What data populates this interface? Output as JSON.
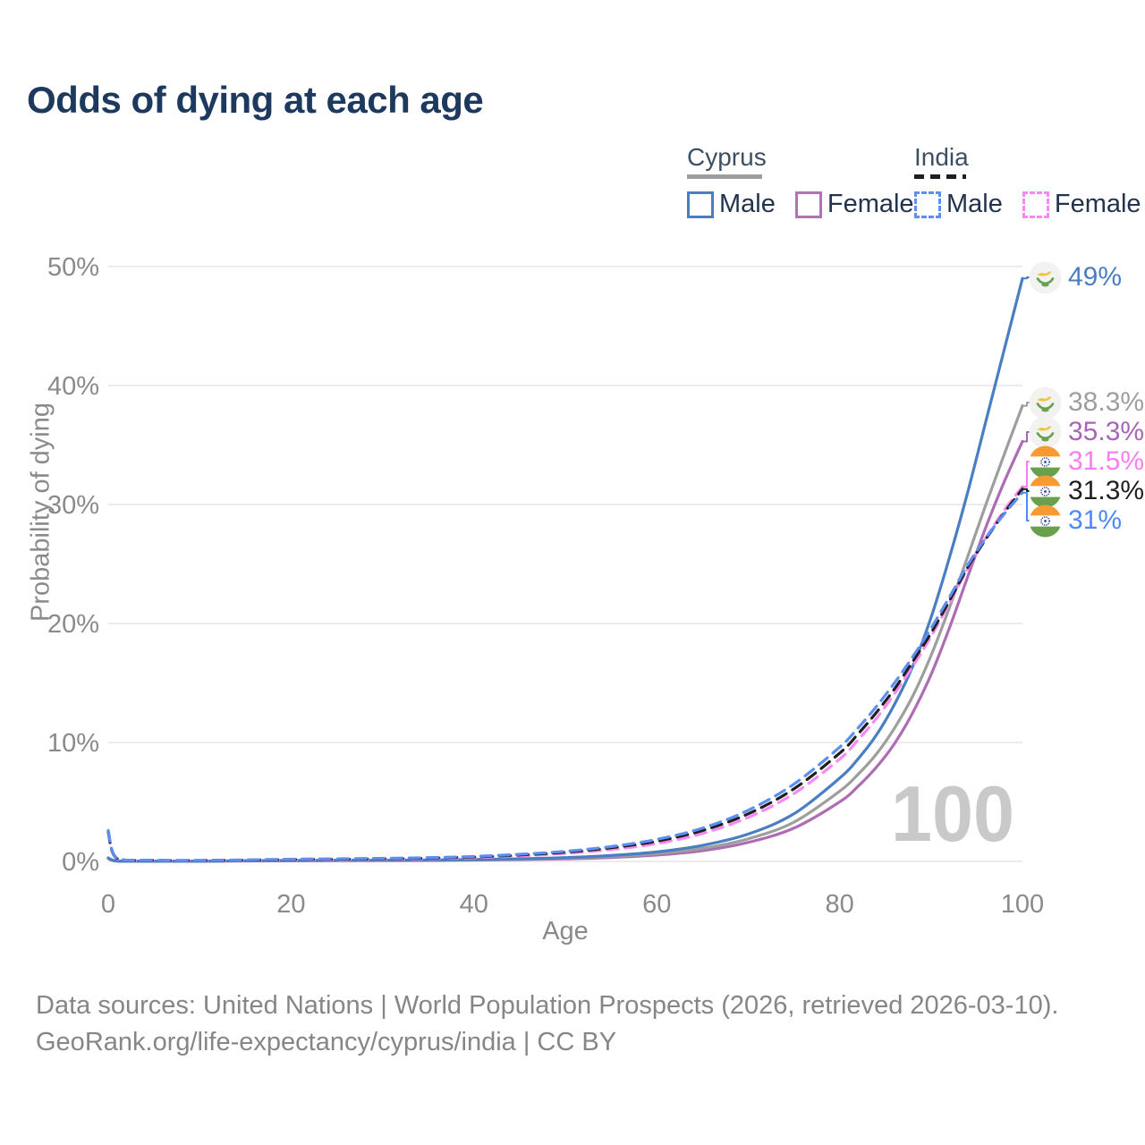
{
  "title": "Odds of dying at each age",
  "age_counter": "100",
  "legend": {
    "groups": [
      {
        "country": "Cyprus",
        "line_style": "solid",
        "line_color": "#9e9e9e",
        "items": [
          {
            "label": "Male",
            "color": "#4a7ec2",
            "style": "solid"
          },
          {
            "label": "Female",
            "color": "#b273b2",
            "style": "solid"
          }
        ]
      },
      {
        "country": "India",
        "line_style": "dashed",
        "line_color": "#1f1f1f",
        "items": [
          {
            "label": "Male",
            "color": "#5b8ff2",
            "style": "dashed"
          },
          {
            "label": "Female",
            "color": "#fb87f3",
            "style": "dashed"
          }
        ]
      }
    ]
  },
  "chart_data": {
    "type": "line",
    "title": "Odds of dying at each age",
    "xlabel": "Age",
    "ylabel": "Probability of dying",
    "xlim": [
      0,
      100
    ],
    "ylim": [
      0,
      50
    ],
    "x_ticks": [
      0,
      20,
      40,
      60,
      80,
      100
    ],
    "y_ticks": [
      {
        "value": 0,
        "label": "0%"
      },
      {
        "value": 10,
        "label": "10%"
      },
      {
        "value": 20,
        "label": "20%"
      },
      {
        "value": 30,
        "label": "30%"
      },
      {
        "value": 40,
        "label": "40%"
      },
      {
        "value": 50,
        "label": "50%"
      }
    ],
    "grid": true,
    "unit": "percent probability of dying",
    "ages": [
      0,
      1,
      5,
      10,
      15,
      20,
      25,
      30,
      35,
      40,
      45,
      50,
      55,
      60,
      65,
      70,
      75,
      80,
      82,
      84,
      86,
      88,
      90,
      92,
      94,
      96,
      98,
      100
    ],
    "series": [
      {
        "id": "cyprus_female",
        "name": "Cyprus Female",
        "country": "Cyprus",
        "sex": "female",
        "color": "#ae6cb3",
        "dash": "solid",
        "end_value": 35.3,
        "values": [
          0.24,
          0.03,
          0.02,
          0.02,
          0.04,
          0.05,
          0.06,
          0.07,
          0.08,
          0.11,
          0.15,
          0.21,
          0.33,
          0.53,
          0.9,
          1.6,
          2.8,
          5.0,
          6.3,
          7.9,
          9.9,
          12.5,
          15.7,
          19.6,
          23.9,
          28.1,
          31.9,
          35.3
        ]
      },
      {
        "id": "cyprus_total",
        "name": "Cyprus Total",
        "country": "Cyprus",
        "sex": "both",
        "color": "#9e9e9e",
        "dash": "solid",
        "end_value": 38.3,
        "values": [
          0.27,
          0.04,
          0.02,
          0.02,
          0.05,
          0.07,
          0.08,
          0.08,
          0.1,
          0.13,
          0.18,
          0.26,
          0.41,
          0.66,
          1.1,
          1.9,
          3.3,
          5.9,
          7.3,
          9.0,
          11.2,
          13.9,
          17.3,
          21.3,
          25.6,
          30.0,
          34.2,
          38.3
        ]
      },
      {
        "id": "cyprus_male",
        "name": "Cyprus Male",
        "country": "Cyprus",
        "sex": "male",
        "color": "#4a7ec2",
        "dash": "solid",
        "end_value": 49.0,
        "values": [
          0.3,
          0.04,
          0.02,
          0.02,
          0.06,
          0.09,
          0.1,
          0.1,
          0.12,
          0.16,
          0.22,
          0.32,
          0.5,
          0.8,
          1.35,
          2.3,
          4.0,
          7.0,
          8.6,
          10.6,
          13.2,
          16.4,
          20.5,
          25.5,
          31.0,
          37.0,
          43.0,
          49.0
        ]
      },
      {
        "id": "india_female",
        "name": "India Female",
        "country": "India",
        "sex": "female",
        "color": "#fb87f3",
        "dash": "dashed",
        "end_value": 31.5,
        "values": [
          2.4,
          0.21,
          0.08,
          0.07,
          0.1,
          0.13,
          0.15,
          0.18,
          0.23,
          0.32,
          0.46,
          0.68,
          1.0,
          1.5,
          2.35,
          3.7,
          5.7,
          8.6,
          10.2,
          12.0,
          14.1,
          16.4,
          18.9,
          21.7,
          24.6,
          27.2,
          29.5,
          31.5
        ]
      },
      {
        "id": "india_total",
        "name": "India Total",
        "country": "India",
        "sex": "both",
        "color": "#1f1f1f",
        "dash": "dashed",
        "end_value": 31.3,
        "values": [
          2.5,
          0.23,
          0.09,
          0.08,
          0.11,
          0.16,
          0.19,
          0.22,
          0.28,
          0.38,
          0.54,
          0.78,
          1.15,
          1.7,
          2.6,
          4.0,
          6.1,
          9.1,
          10.7,
          12.5,
          14.5,
          16.8,
          19.2,
          21.9,
          24.7,
          27.1,
          29.3,
          31.3
        ]
      },
      {
        "id": "india_male",
        "name": "India Male",
        "country": "India",
        "sex": "male",
        "color": "#5b8ff2",
        "dash": "dashed",
        "end_value": 31.0,
        "values": [
          2.6,
          0.25,
          0.1,
          0.09,
          0.13,
          0.19,
          0.22,
          0.26,
          0.32,
          0.42,
          0.6,
          0.85,
          1.25,
          1.85,
          2.8,
          4.3,
          6.5,
          9.6,
          11.2,
          13.0,
          15.0,
          17.2,
          19.6,
          22.2,
          24.9,
          27.2,
          29.2,
          31.0
        ]
      }
    ]
  },
  "end_labels": [
    {
      "series": "cyprus_male",
      "flag": "cyprus",
      "text": "49%",
      "color": "#4a7ec2"
    },
    {
      "series": "cyprus_total",
      "flag": "cyprus",
      "text": "38.3%",
      "color": "#9e9e9e"
    },
    {
      "series": "cyprus_female",
      "flag": "cyprus",
      "text": "35.3%",
      "color": "#a965b5"
    },
    {
      "series": "india_female",
      "flag": "india",
      "text": "31.5%",
      "color": "#fb7df2"
    },
    {
      "series": "india_total",
      "flag": "india",
      "text": "31.3%",
      "color": "#1f1f1f"
    },
    {
      "series": "india_male",
      "flag": "india",
      "text": "31%",
      "color": "#4d8af5"
    }
  ],
  "footer": {
    "line1": "Data sources: United Nations | World Population Prospects (2026, retrieved 2026-03-10).",
    "line2": "GeoRank.org/life-expectancy/cyprus/india | CC BY"
  }
}
